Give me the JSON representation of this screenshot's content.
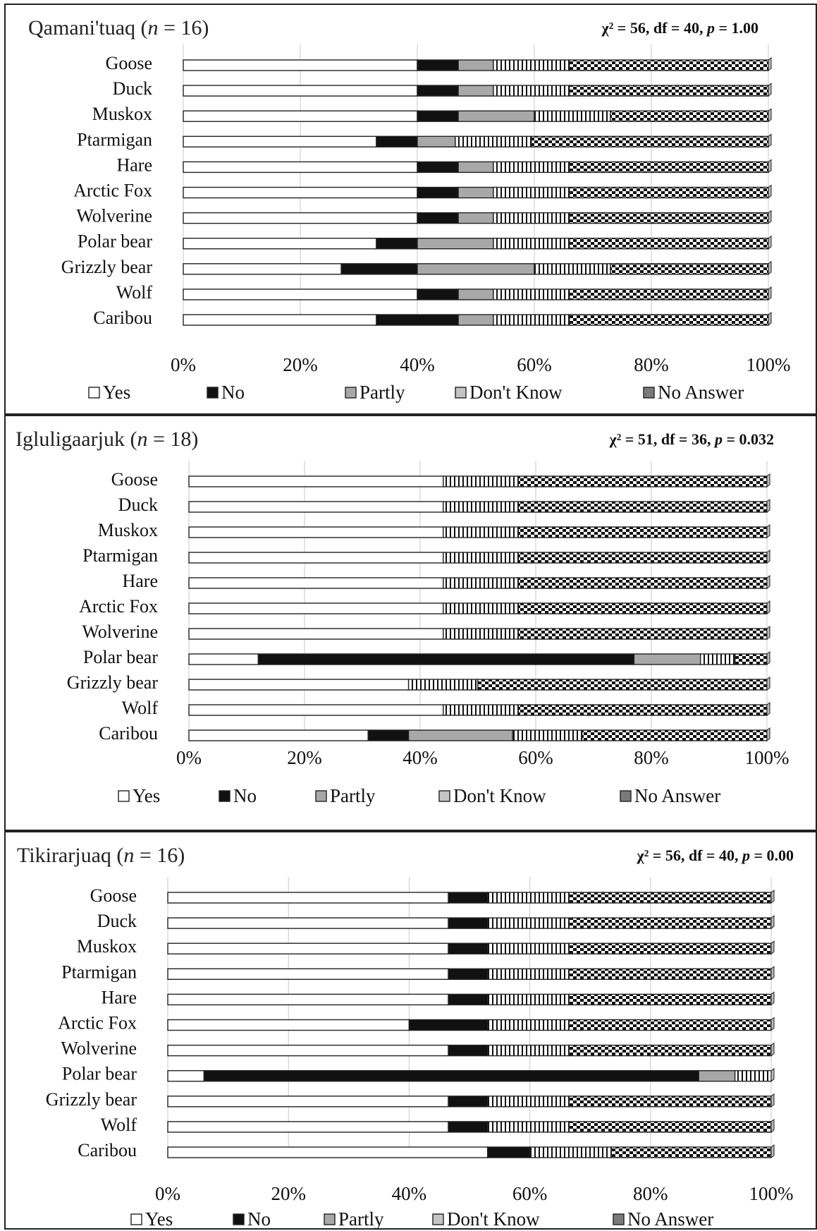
{
  "chart_data": [
    {
      "type": "bar",
      "orientation": "horizontal",
      "stacked": "percent",
      "title": "Qamani'tuaq (n = 16)",
      "stat": "χ² = 56, df = 40, p = 1.00",
      "categories": [
        "Goose",
        "Duck",
        "Muskox",
        "Ptarmigan",
        "Hare",
        "Arctic Fox",
        "Wolverine",
        "Polar bear",
        "Grizzly bear",
        "Wolf",
        "Caribou"
      ],
      "series": [
        {
          "name": "Yes",
          "values": [
            40,
            40,
            40,
            33,
            40,
            40,
            40,
            33,
            27,
            40,
            33
          ]
        },
        {
          "name": "No",
          "values": [
            7,
            7,
            7,
            7,
            7,
            7,
            7,
            7,
            13,
            7,
            14
          ]
        },
        {
          "name": "Partly",
          "values": [
            6,
            6,
            13,
            6.5,
            6,
            6,
            6,
            13,
            20,
            6,
            6
          ]
        },
        {
          "name": "Don't Know",
          "values": [
            13,
            13,
            13,
            13,
            13,
            13,
            13,
            13,
            13,
            13,
            13
          ]
        },
        {
          "name": "No Answer",
          "values": [
            34,
            34,
            27,
            40.5,
            34,
            34,
            34,
            34,
            27,
            34,
            34
          ]
        }
      ],
      "xticks": [
        "0%",
        "20%",
        "40%",
        "60%",
        "80%",
        "100%"
      ],
      "xlim": [
        0,
        100
      ],
      "grid": "vertical",
      "legend": [
        "Yes",
        "No",
        "Partly",
        "Don't Know",
        "No Answer"
      ],
      "legend_position": "bottom"
    },
    {
      "type": "bar",
      "orientation": "horizontal",
      "stacked": "percent",
      "title": "Igluligaarjuk (n = 18)",
      "stat": "χ² = 51, df = 36, p = 0.032",
      "categories": [
        "Goose",
        "Duck",
        "Muskox",
        "Ptarmigan",
        "Hare",
        "Arctic Fox",
        "Wolverine",
        "Polar bear",
        "Grizzly bear",
        "Wolf",
        "Caribou"
      ],
      "series": [
        {
          "name": "Yes",
          "values": [
            44,
            44,
            44,
            44,
            44,
            44,
            44,
            12,
            38,
            44,
            31
          ]
        },
        {
          "name": "No",
          "values": [
            0,
            0,
            0,
            0,
            0,
            0,
            0,
            65,
            0,
            0,
            7
          ]
        },
        {
          "name": "Partly",
          "values": [
            0,
            0,
            0,
            0,
            0,
            0,
            0,
            11.5,
            0,
            0,
            18
          ]
        },
        {
          "name": "Don't Know",
          "values": [
            13,
            13,
            13,
            13,
            13,
            13,
            13,
            6,
            12,
            13,
            12
          ]
        },
        {
          "name": "No Answer",
          "values": [
            43,
            43,
            43,
            43,
            43,
            43,
            43,
            5.5,
            50,
            43,
            32
          ]
        }
      ],
      "xticks": [
        "0%",
        "20%",
        "40%",
        "60%",
        "80%",
        "100%"
      ],
      "xlim": [
        0,
        100
      ],
      "grid": "vertical",
      "legend": [
        "Yes",
        "No",
        "Partly",
        "Don't Know",
        "No Answer"
      ],
      "legend_position": "bottom"
    },
    {
      "type": "bar",
      "orientation": "horizontal",
      "stacked": "percent",
      "title": "Tikirarjuaq (n = 16)",
      "stat": "χ² = 56, df = 40, p = 0.00",
      "categories": [
        "Goose",
        "Duck",
        "Muskox",
        "Ptarmigan",
        "Hare",
        "Arctic Fox",
        "Wolverine",
        "Polar bear",
        "Grizzly bear",
        "Wolf",
        "Caribou"
      ],
      "series": [
        {
          "name": "Yes",
          "values": [
            46.5,
            46.5,
            46.5,
            46.5,
            46.5,
            40,
            46.5,
            6,
            46.5,
            46.5,
            53
          ]
        },
        {
          "name": "No",
          "values": [
            6.5,
            6.5,
            6.5,
            6.5,
            6.5,
            13,
            6.5,
            82,
            6.5,
            6.5,
            7
          ]
        },
        {
          "name": "Partly",
          "values": [
            0,
            0,
            0,
            0,
            0,
            0,
            0,
            6,
            0,
            0,
            0
          ]
        },
        {
          "name": "Don't Know",
          "values": [
            13.5,
            13.5,
            13.5,
            13.5,
            13.5,
            13.5,
            13.5,
            6,
            13.5,
            13.5,
            13.5
          ]
        },
        {
          "name": "No Answer",
          "values": [
            33.5,
            33.5,
            33.5,
            33.5,
            33.5,
            33.5,
            33.5,
            0,
            33.5,
            33.5,
            26.5
          ]
        }
      ],
      "xticks": [
        "0%",
        "20%",
        "40%",
        "60%",
        "80%",
        "100%"
      ],
      "xlim": [
        0,
        100
      ],
      "grid": "vertical",
      "legend": [
        "Yes",
        "No",
        "Partly",
        "Don't Know",
        "No Answer"
      ],
      "legend_position": "bottom"
    }
  ],
  "series_colors": {
    "Yes": "#ffffff",
    "No": "#111111",
    "Partly": "#a8a8a8",
    "Don't Know": "pattern-vertical-stripes",
    "No Answer": "pattern-checker"
  }
}
